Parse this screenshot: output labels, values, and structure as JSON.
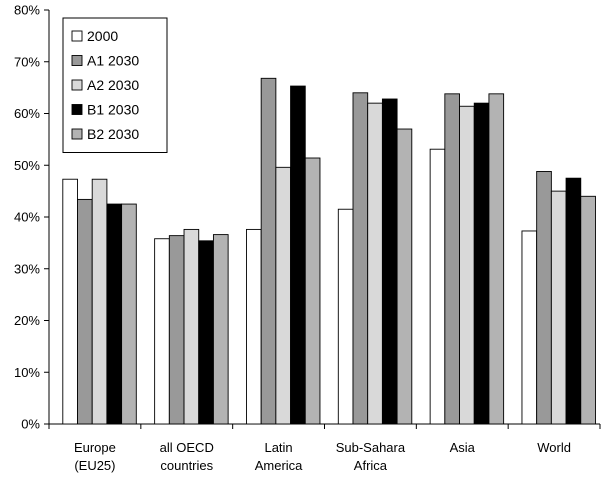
{
  "chart_data": {
    "type": "bar",
    "title": "",
    "xlabel": "",
    "ylabel": "",
    "ylim": [
      0,
      80
    ],
    "yticks": [
      "0%",
      "10%",
      "20%",
      "30%",
      "40%",
      "50%",
      "60%",
      "70%",
      "80%"
    ],
    "grid": false,
    "legend_position": "top-left",
    "categories": [
      [
        "Europe",
        "(EU25)"
      ],
      [
        "all OECD",
        "countries"
      ],
      [
        "Latin",
        "America"
      ],
      [
        "Sub-Sahara",
        "Africa"
      ],
      [
        "Asia"
      ],
      [
        "World"
      ]
    ],
    "series": [
      {
        "name": "2000",
        "color": "#ffffff",
        "values": [
          47.3,
          35.8,
          37.6,
          41.5,
          53.1,
          37.3
        ]
      },
      {
        "name": "A1 2030",
        "color": "#999999",
        "values": [
          43.4,
          36.4,
          66.8,
          64.0,
          63.8,
          48.8
        ]
      },
      {
        "name": "A2 2030",
        "color": "#d9d9d9",
        "values": [
          47.3,
          37.6,
          49.6,
          62.0,
          61.4,
          45.0
        ]
      },
      {
        "name": "B1 2030",
        "color": "#000000",
        "values": [
          42.5,
          35.4,
          65.3,
          62.8,
          62.0,
          47.5
        ]
      },
      {
        "name": "B2 2030",
        "color": "#b3b3b3",
        "values": [
          42.5,
          36.6,
          51.4,
          57.0,
          63.8,
          44.0
        ]
      }
    ]
  }
}
